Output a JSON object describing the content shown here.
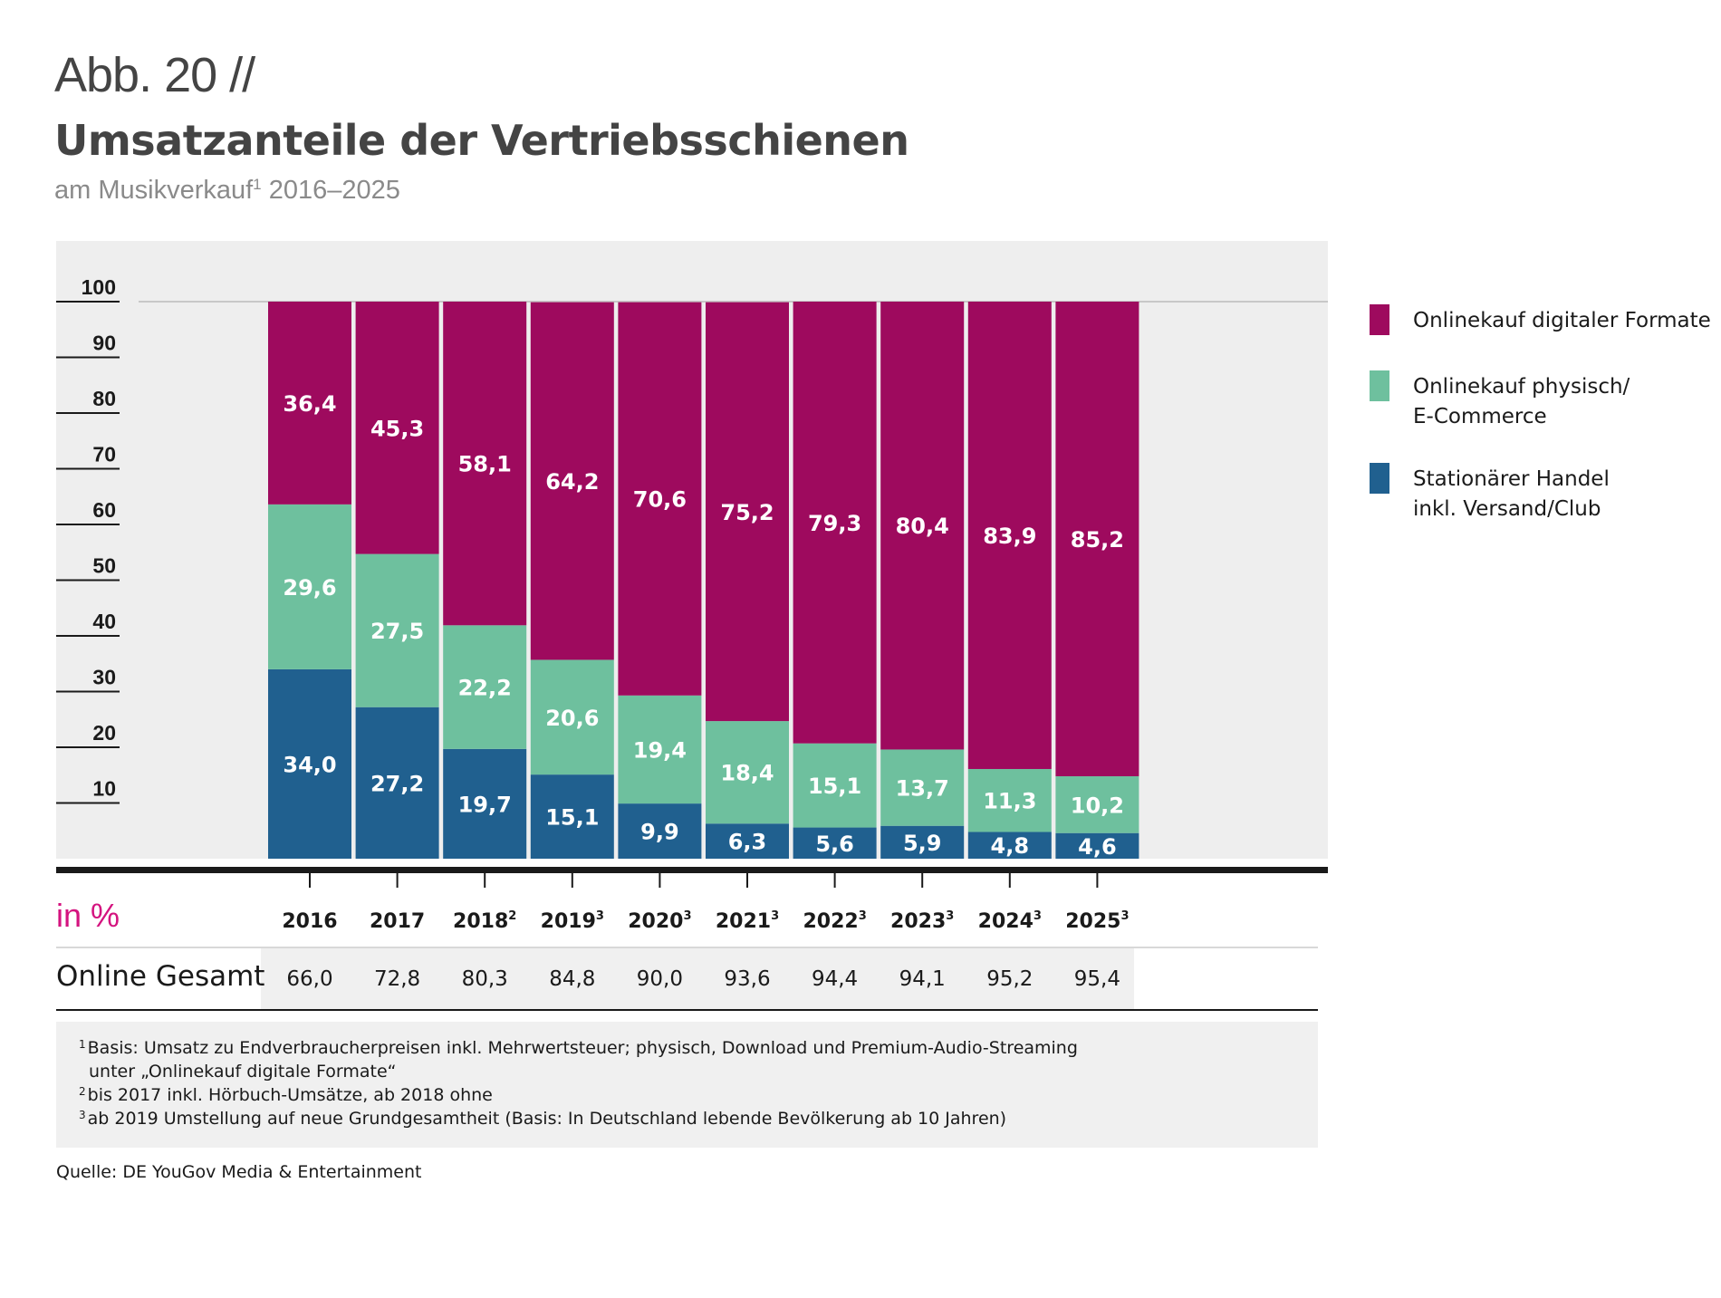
{
  "header": {
    "figure_label": "Abb. 20 //",
    "title": "Umsatzanteile der Vertriebsschienen",
    "subtitle_prefix": "am Musikverkauf",
    "subtitle_sup": "1",
    "subtitle_suffix": " 2016–2025"
  },
  "colors": {
    "digital": "#9e0a5e",
    "physical_online": "#6ec09e",
    "retail": "#20608f",
    "panel": "#eeeeee",
    "unit_label": "#d4137f"
  },
  "chart_data": {
    "type": "bar",
    "stacked": true,
    "title": "Umsatzanteile der Vertriebsschienen",
    "subtitle": "am Musikverkauf 2016–2025",
    "ylabel": "in %",
    "ylim": [
      0,
      100
    ],
    "yticks": [
      10,
      20,
      30,
      40,
      50,
      60,
      70,
      80,
      90,
      100
    ],
    "legend_position": "right",
    "categories": [
      "2016",
      "2017",
      "2018",
      "2019",
      "2020",
      "2021",
      "2022",
      "2023",
      "2024",
      "2025"
    ],
    "category_footnotes": [
      "",
      "",
      "2",
      "3",
      "3",
      "3",
      "3",
      "3",
      "3",
      "3"
    ],
    "series": [
      {
        "name": "Stationärer Handel inkl. Versand/Club",
        "color_key": "retail",
        "values": [
          34.0,
          27.2,
          19.7,
          15.1,
          9.9,
          6.3,
          5.6,
          5.9,
          4.8,
          4.6
        ],
        "labels": [
          "34,0",
          "27,2",
          "19,7",
          "15,1",
          "9,9",
          "6,3",
          "5,6",
          "5,9",
          "4,8",
          "4,6"
        ]
      },
      {
        "name": "Onlinekauf physisch/ E-Commerce",
        "color_key": "physical_online",
        "values": [
          29.6,
          27.5,
          22.2,
          20.6,
          19.4,
          18.4,
          15.1,
          13.7,
          11.3,
          10.2
        ],
        "labels": [
          "29,6",
          "27,5",
          "22,2",
          "20,6",
          "19,4",
          "18,4",
          "15,1",
          "13,7",
          "11,3",
          "10,2"
        ]
      },
      {
        "name": "Onlinekauf digitaler Formate",
        "color_key": "digital",
        "values": [
          36.4,
          45.3,
          58.1,
          64.2,
          70.6,
          75.2,
          79.3,
          80.4,
          83.9,
          85.2
        ],
        "labels": [
          "36,4",
          "45,3",
          "58,1",
          "64,2",
          "70,6",
          "75,2",
          "79,3",
          "80,4",
          "83,9",
          "85,2"
        ]
      }
    ]
  },
  "legend": [
    {
      "color_key": "digital",
      "text": "Onlinekauf digitaler Formate"
    },
    {
      "color_key": "physical_online",
      "text": "Onlinekauf physisch/\nE-Commerce"
    },
    {
      "color_key": "retail",
      "text": "Stationärer Handel\ninkl. Versand/Club"
    }
  ],
  "table": {
    "unit_label": "in %",
    "row_label": "Online Gesamt",
    "values": [
      "66,0",
      "72,8",
      "80,3",
      "84,8",
      "90,0",
      "93,6",
      "94,4",
      "94,1",
      "95,2",
      "95,4"
    ]
  },
  "footnotes": [
    {
      "sup": "1",
      "text": "Basis: Umsatz zu Endverbraucherpreisen inkl. Mehrwertsteuer; physisch, Download und Premium-Audio-Streaming"
    },
    {
      "sup": "",
      "text": "unter „Onlinekauf digitale Formate“"
    },
    {
      "sup": "2",
      "text": "bis 2017 inkl. Hörbuch-Umsätze, ab 2018 ohne"
    },
    {
      "sup": "3",
      "text": "ab 2019 Umstellung auf neue Grundgesamtheit (Basis: In Deutschland lebende Bevölkerung ab 10 Jahren)"
    }
  ],
  "source": "Quelle: DE YouGov Media & Entertainment"
}
